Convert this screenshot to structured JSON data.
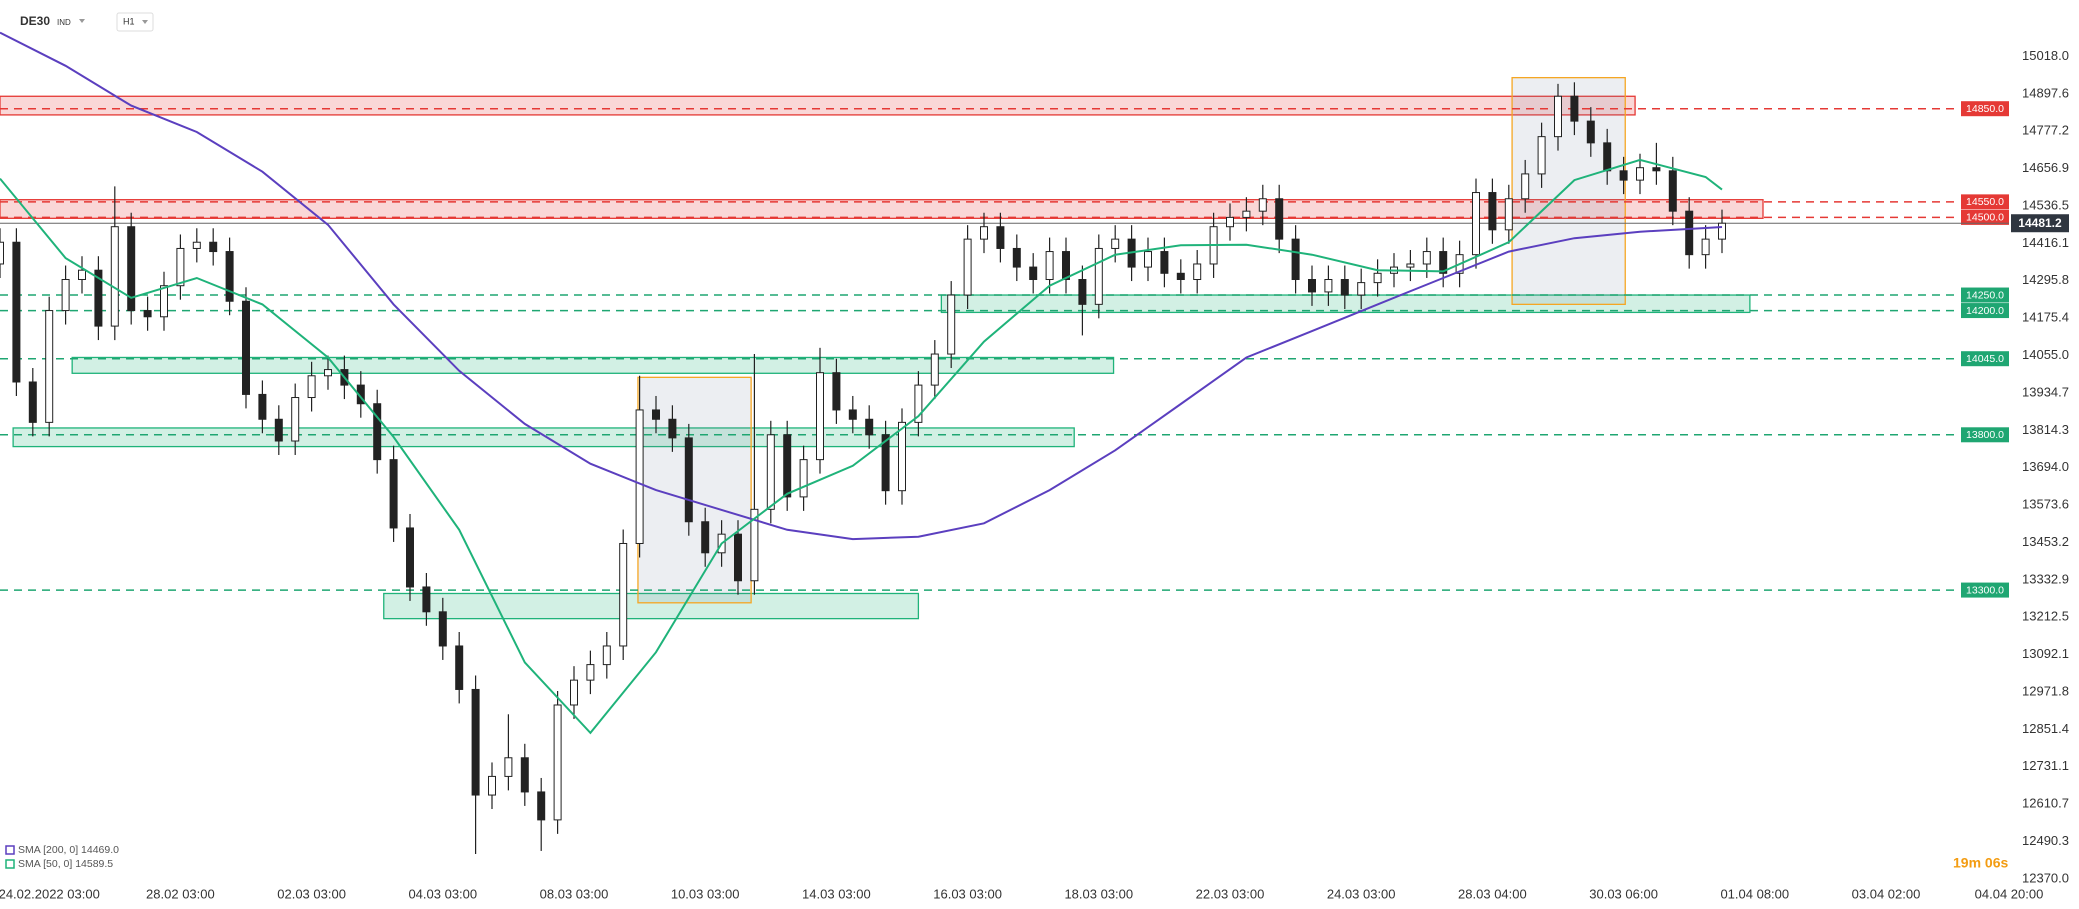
{
  "chart_data": {
    "type": "candlestick",
    "title": "DE30",
    "market": "IND",
    "interval": "H1",
    "countdown": "19m 06s",
    "up_color": "#ffffff",
    "down_color": "#222222",
    "xlim": [
      0,
      122.5
    ],
    "xticks": [
      {
        "value": 3,
        "label": "24.02.2022  03:00"
      },
      {
        "value": 11,
        "label": "28.02  03:00"
      },
      {
        "value": 19,
        "label": "02.03  03:00"
      },
      {
        "value": 27,
        "label": "04.03  03:00"
      },
      {
        "value": 35,
        "label": "08.03  03:00"
      },
      {
        "value": 43,
        "label": "10.03  03:00"
      },
      {
        "value": 51,
        "label": "14.03  03:00"
      },
      {
        "value": 59,
        "label": "16.03  03:00"
      },
      {
        "value": 67,
        "label": "18.03  03:00"
      },
      {
        "value": 75,
        "label": "22.03  03:00"
      },
      {
        "value": 83,
        "label": "24.03  03:00"
      },
      {
        "value": 91,
        "label": "28.03  04:00"
      },
      {
        "value": 99,
        "label": "30.03  06:00"
      },
      {
        "value": 107,
        "label": "01.04  08:00"
      },
      {
        "value": 115,
        "label": "03.04  02:00"
      },
      {
        "value": 122.5,
        "label": "04.04  20:00"
      }
    ],
    "ylim": [
      12360,
      15200
    ],
    "yticks": [
      {
        "value": 15018,
        "label": "15018.0"
      },
      14897.6,
      14777.2,
      14656.9,
      14536.5,
      14416.1,
      14295.8,
      14175.4,
      {
        "value": 14055,
        "label": "14055.0"
      },
      13934.7,
      13814.3,
      {
        "value": 13694,
        "label": "13694.0"
      },
      13573.6,
      13453.2,
      13332.9,
      13212.5,
      13092.1,
      12971.8,
      12851.4,
      12731.1,
      12610.7,
      12490.3,
      {
        "value": 12370,
        "label": "12370.0"
      }
    ],
    "grid": false,
    "open": [
      14350,
      14420,
      13970,
      13840,
      14200,
      14300,
      14330,
      14150,
      14470,
      14200,
      14180,
      14280,
      14400,
      14420,
      14390,
      14230,
      13930,
      13850,
      13780,
      13920,
      13990,
      14010,
      13960,
      13900,
      13720,
      13500,
      13310,
      13230,
      13120,
      12980,
      12640,
      12700,
      12760,
      12650,
      12560,
      12930,
      13010,
      13060,
      13120,
      13450,
      13880,
      13850,
      13790,
      13520,
      13420,
      13480,
      13330,
      13560,
      13800,
      13600,
      13720,
      14000,
      13880,
      13850,
      13800,
      13620,
      13840,
      13960,
      14060,
      14250,
      14430,
      14470,
      14400,
      14340,
      14300,
      14390,
      14300,
      14220,
      14400,
      14430,
      14340,
      14390,
      14320,
      14300,
      14350,
      14470,
      14500,
      14520,
      14560,
      14430,
      14300,
      14260,
      14300,
      14250,
      14290,
      14320,
      14340,
      14350,
      14390,
      14320,
      14380,
      14580,
      14460,
      14560,
      14640,
      14760,
      14890,
      14810,
      14740,
      14650,
      14620,
      14660,
      14650,
      14520,
      14380,
      14430
    ],
    "high": [
      14465,
      14465,
      14015,
      14245,
      14345,
      14375,
      14375,
      14600,
      14515,
      14245,
      14325,
      14445,
      14465,
      14465,
      14435,
      14275,
      13975,
      13895,
      13965,
      14035,
      14055,
      14055,
      14005,
      13945,
      13765,
      13545,
      13355,
      13275,
      13165,
      13025,
      12745,
      12900,
      12805,
      12695,
      12975,
      13055,
      13105,
      13165,
      13495,
      13990,
      13925,
      13895,
      13835,
      13565,
      13525,
      13525,
      14060,
      13845,
      13845,
      13765,
      14080,
      14045,
      13925,
      13895,
      13845,
      13885,
      14005,
      14105,
      14295,
      14475,
      14515,
      14515,
      14445,
      14385,
      14435,
      14435,
      14345,
      14445,
      14475,
      14475,
      14435,
      14435,
      14365,
      14395,
      14515,
      14545,
      14565,
      14605,
      14605,
      14475,
      14345,
      14345,
      14345,
      14335,
      14365,
      14385,
      14395,
      14435,
      14435,
      14425,
      14625,
      14625,
      14605,
      14685,
      14805,
      14930,
      14935,
      14855,
      14785,
      14695,
      14705,
      14740,
      14695,
      14565,
      14475,
      14525
    ],
    "low": [
      14305,
      13925,
      13795,
      13795,
      14155,
      14255,
      14105,
      14105,
      14155,
      14135,
      14135,
      14235,
      14355,
      14345,
      14185,
      13885,
      13805,
      13735,
      13735,
      13875,
      13945,
      13915,
      13855,
      13675,
      13455,
      13265,
      13185,
      13075,
      12935,
      12450,
      12595,
      12655,
      12605,
      12460,
      12515,
      12885,
      12965,
      13015,
      13075,
      13405,
      13805,
      13745,
      13475,
      13375,
      13375,
      13285,
      13285,
      13515,
      13555,
      13555,
      13675,
      13835,
      13805,
      13755,
      13575,
      13575,
      13795,
      13915,
      14015,
      14205,
      14385,
      14355,
      14295,
      14255,
      14255,
      14255,
      14120,
      14175,
      14355,
      14295,
      14295,
      14275,
      14255,
      14255,
      14305,
      14425,
      14455,
      14475,
      14385,
      14255,
      14215,
      14215,
      14205,
      14205,
      14245,
      14275,
      14295,
      14305,
      14275,
      14275,
      14335,
      14415,
      14415,
      14515,
      14595,
      14715,
      14765,
      14695,
      14605,
      14575,
      14575,
      14605,
      14475,
      14335,
      14335,
      14385
    ],
    "close": [
      14420,
      13970,
      13840,
      14200,
      14300,
      14330,
      14150,
      14470,
      14200,
      14180,
      14280,
      14400,
      14420,
      14390,
      14230,
      13930,
      13850,
      13780,
      13920,
      13990,
      14010,
      13960,
      13900,
      13720,
      13500,
      13310,
      13230,
      13120,
      12980,
      12640,
      12700,
      12760,
      12650,
      12560,
      12930,
      13010,
      13060,
      13120,
      13450,
      13880,
      13850,
      13790,
      13520,
      13420,
      13480,
      13330,
      13560,
      13800,
      13600,
      13720,
      14000,
      13880,
      13850,
      13800,
      13620,
      13840,
      13960,
      14060,
      14250,
      14430,
      14470,
      14400,
      14340,
      14300,
      14390,
      14300,
      14220,
      14400,
      14430,
      14340,
      14390,
      14320,
      14300,
      14350,
      14470,
      14500,
      14520,
      14560,
      14430,
      14300,
      14260,
      14300,
      14250,
      14290,
      14320,
      14340,
      14350,
      14390,
      14320,
      14380,
      14580,
      14460,
      14560,
      14640,
      14760,
      14890,
      14810,
      14740,
      14650,
      14620,
      14660,
      14650,
      14520,
      14380,
      14430,
      14481.2
    ],
    "series": [
      {
        "name": "SMA [200, 0]  14469.0",
        "color": "#5b3fbf",
        "x": [
          0,
          4,
          8,
          12,
          16,
          20,
          24,
          28,
          32,
          36,
          40,
          44,
          48,
          52,
          56,
          60,
          64,
          68,
          72,
          76,
          80,
          84,
          88,
          92,
          96,
          100,
          104,
          105
        ],
        "values": [
          15095,
          14988,
          14860,
          14775,
          14647,
          14476,
          14220,
          14006,
          13835,
          13707,
          13622,
          13558,
          13494,
          13464,
          13472,
          13515,
          13622,
          13750,
          13899,
          14049,
          14134,
          14220,
          14305,
          14390,
          14433,
          14454,
          14466,
          14469
        ]
      },
      {
        "name": "SMA [50, 0]  14589.5",
        "color": "#1fb37a",
        "x": [
          0,
          4,
          8,
          12,
          16,
          20,
          24,
          28,
          32,
          36,
          40,
          44,
          48,
          52,
          56,
          60,
          64,
          68,
          72,
          76,
          80,
          84,
          88,
          92,
          96,
          100,
          104,
          105
        ],
        "values": [
          14625,
          14369,
          14241,
          14305,
          14220,
          14049,
          13793,
          13494,
          13067,
          12840,
          13100,
          13450,
          13610,
          13700,
          13860,
          14100,
          14280,
          14380,
          14410,
          14412,
          14380,
          14330,
          14326,
          14420,
          14620,
          14685,
          14630,
          14589.5
        ]
      }
    ],
    "zones": [
      {
        "x": [
          0,
          99.7
        ],
        "y": [
          14830,
          14890
        ],
        "color": "#e53935"
      },
      {
        "x": [
          0,
          107.5
        ],
        "y": [
          14497,
          14557
        ],
        "color": "#e53935"
      },
      {
        "x": [
          57.4,
          106.7
        ],
        "y": [
          14194,
          14250
        ],
        "color": "#1fb37a"
      },
      {
        "x": [
          4.4,
          67.9
        ],
        "y": [
          13998,
          14049
        ],
        "color": "#1fb37a"
      },
      {
        "x": [
          0.8,
          65.5
        ],
        "y": [
          13762,
          13822
        ],
        "color": "#1fb37a"
      },
      {
        "x": [
          23.4,
          56
        ],
        "y": [
          13208,
          13289
        ],
        "color": "#1fb37a"
      },
      {
        "x": [
          38.9,
          45.8
        ],
        "y": [
          13259,
          13985
        ],
        "color": "#f5a623"
      },
      {
        "x": [
          92.2,
          99.1
        ],
        "y": [
          14220,
          14950
        ],
        "color": "#f5a623"
      }
    ],
    "levels": [
      {
        "value": 14850,
        "label": "14850.0",
        "color": "#e53935"
      },
      {
        "value": 14550,
        "label": "14550.0",
        "color": "#e53935"
      },
      {
        "value": 14500,
        "label": "14500.0",
        "color": "#e53935"
      },
      {
        "value": 14250,
        "label": "14250.0",
        "color": "#1fa672"
      },
      {
        "value": 14200,
        "label": "14200.0",
        "color": "#1fa672"
      },
      {
        "value": 14045,
        "label": "14045.0",
        "color": "#1fa672"
      },
      {
        "value": 13800,
        "label": "13800.0",
        "color": "#1fa672"
      },
      {
        "value": 13300,
        "label": "13300.0",
        "color": "#1fa672"
      }
    ],
    "last_price": 14481.2
  }
}
